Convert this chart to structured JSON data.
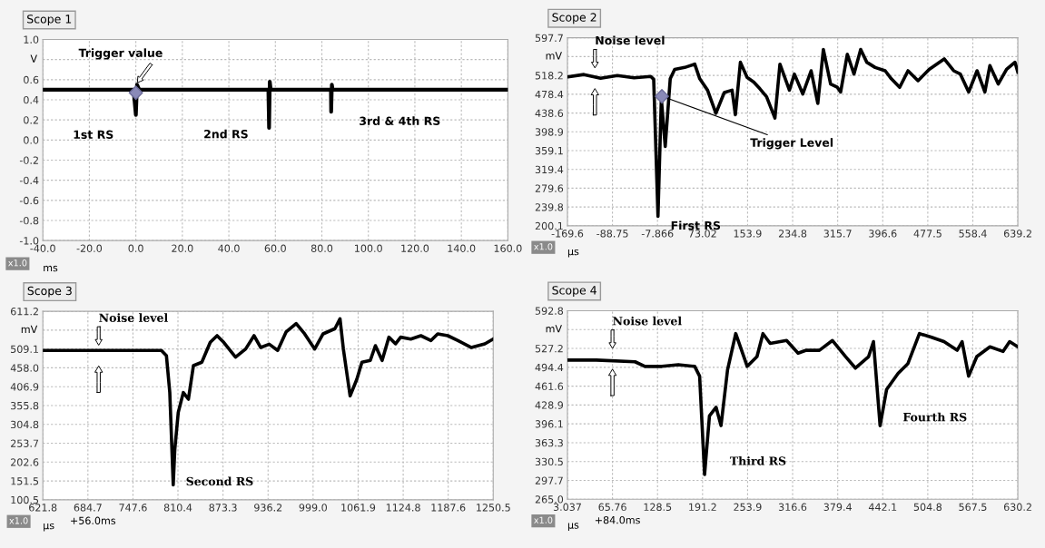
{
  "chart_data": [
    {
      "type": "line",
      "title": "Scope 1",
      "xlabel": "ms",
      "ylabel": "V",
      "grid": true,
      "xlim": [
        -40,
        160
      ],
      "xticks": [
        {
          "value": -40,
          "label": "-40.0"
        },
        {
          "value": -20,
          "label": "-20.0"
        },
        {
          "value": 0,
          "label": "0.0"
        },
        {
          "value": 20,
          "label": "20.0"
        },
        {
          "value": 40,
          "label": "40.0"
        },
        {
          "value": 60,
          "label": "60.0"
        },
        {
          "value": 80,
          "label": "80.0"
        },
        {
          "value": 100,
          "label": "100.0"
        },
        {
          "value": 120,
          "label": "120.0"
        },
        {
          "value": 140,
          "label": "140.0"
        },
        {
          "value": 160,
          "label": "160.0"
        }
      ],
      "ylim": [
        -1.0,
        1.0
      ],
      "yticks": [
        {
          "value": -1.0,
          "label": "-1.0"
        },
        {
          "value": -0.8,
          "label": "-0.8"
        },
        {
          "value": -0.6,
          "label": "-0.6"
        },
        {
          "value": -0.4,
          "label": "-0.4"
        },
        {
          "value": -0.2,
          "label": "-0.2"
        },
        {
          "value": 0.0,
          "label": "0.0"
        },
        {
          "value": 0.2,
          "label": "0.2"
        },
        {
          "value": 0.4,
          "label": "0.4"
        },
        {
          "value": 0.6,
          "label": "0.6"
        },
        {
          "value": 0.8,
          "label": null
        },
        {
          "value": 1.0,
          "label": "1.0"
        }
      ],
      "series": [
        {
          "color": "#000000",
          "x": [
            -40,
            -1,
            0,
            0.5,
            1.5,
            57,
            57.3,
            57.6,
            58,
            83.9,
            84,
            84.3,
            84.6,
            160
          ],
          "values": [
            0.5,
            0.5,
            0.25,
            0.55,
            0.5,
            0.5,
            0.12,
            0.58,
            0.5,
            0.5,
            0.28,
            0.55,
            0.5,
            0.5
          ]
        },
        {
          "type": "scatter",
          "marker": "diamond",
          "color": "#8a8ab8",
          "x": [
            0
          ],
          "values": [
            0.47
          ]
        }
      ],
      "annotations": [
        {
          "text": "Trigger value",
          "x": 0,
          "y": 0.55
        },
        {
          "text": "1st RS",
          "x": 0,
          "y": 0.27
        },
        {
          "text": "2nd RS",
          "x": 57.3,
          "y": 0.15
        },
        {
          "text": "3rd & 4th RS",
          "x": 84,
          "y": 0.28
        },
        "x1.0"
      ]
    },
    {
      "type": "line",
      "title": "Scope 2",
      "xlabel": "µs",
      "ylabel": "mV",
      "grid": true,
      "xlim": [
        -169.6,
        639.2
      ],
      "xticks": [
        -169.6,
        -88.75,
        -7.866,
        73.02,
        153.9,
        234.8,
        315.7,
        396.6,
        477.5,
        558.4,
        639.2
      ],
      "ylim": [
        200.1,
        597.7
      ],
      "yticks": [
        200.1,
        239.8,
        279.6,
        319.4,
        359.1,
        398.9,
        438.6,
        478.4,
        518.2,
        {
          "value": 557.9,
          "label": null
        },
        597.7
      ],
      "series": [
        {
          "color": "#000000",
          "x": [
            -169.6,
            -140,
            -110,
            -80,
            -50,
            -20,
            -14.7,
            -7,
            -1,
            6,
            15,
            23,
            41,
            59,
            68,
            82,
            97,
            112,
            126,
            132,
            141,
            153,
            165,
            176,
            188,
            203,
            212,
            229,
            238,
            253,
            268,
            280,
            290,
            303,
            315,
            321,
            333,
            345,
            357,
            368,
            383,
            401,
            412,
            427,
            442,
            460,
            480,
            507,
            524,
            536,
            551,
            566,
            580,
            589,
            604,
            619,
            634,
            639.2
          ],
          "values": [
            515,
            520,
            512,
            518,
            513,
            516,
            510,
            220,
            469,
            368,
            511,
            531,
            535,
            542,
            511,
            487,
            438,
            482,
            487,
            435,
            546,
            514,
            504,
            490,
            473,
            428,
            542,
            487,
            521,
            479,
            528,
            459,
            573,
            500,
            493,
            483,
            563,
            521,
            573,
            546,
            535,
            528,
            511,
            493,
            528,
            507,
            531,
            553,
            528,
            521,
            483,
            528,
            483,
            539,
            500,
            531,
            546,
            525
          ]
        },
        {
          "type": "scatter",
          "marker": "diamond",
          "color": "#8a8ab8",
          "x": [
            0
          ],
          "values": [
            474
          ]
        }
      ],
      "annotations": [
        "Noise level",
        {
          "text": "Trigger Level",
          "x": 0,
          "y": 474
        },
        {
          "text": "First RS",
          "x": -7,
          "y": 220
        },
        "x1.0"
      ]
    },
    {
      "type": "line",
      "title": "Scope 3",
      "xlabel": "µs",
      "ylabel": "mV",
      "grid": true,
      "xlim": [
        621.8,
        1250.5
      ],
      "xticks": [
        621.8,
        684.7,
        747.6,
        810.4,
        873.3,
        936.2,
        {
          "value": 999.0,
          "label": "999.0"
        },
        1061.9,
        1124.8,
        1187.6,
        1250.5
      ],
      "ylim": [
        100.5,
        611.2
      ],
      "yticks": [
        100.5,
        151.5,
        202.6,
        253.7,
        304.8,
        355.8,
        406.9,
        {
          "value": 458.0,
          "label": "458.0"
        },
        509.1,
        {
          "value": 560.1,
          "label": null
        },
        611.2
      ],
      "series": [
        {
          "color": "#000000",
          "x": [
            621.8,
            655.7,
            702.7,
            749.7,
            787.3,
            794.3,
            799,
            803.8,
            806,
            810.8,
            817.9,
            825,
            832,
            843.7,
            855.5,
            865,
            874.3,
            890.8,
            904.9,
            916.6,
            926,
            937.8,
            949.6,
            961.3,
            975.4,
            987.2,
            1001.3,
            1013,
            1029.5,
            1036.6,
            1041.3,
            1050.7,
            1060.1,
            1067.2,
            1078.9,
            1086,
            1095.4,
            1104.8,
            1114.2,
            1121.3,
            1135.4,
            1149.5,
            1163.6,
            1173,
            1187.1,
            1201.2,
            1220,
            1238.8,
            1250.5
          ],
          "values": [
            505,
            505,
            505,
            505,
            505,
            491,
            391,
            141,
            237,
            337,
            391,
            373,
            464,
            473,
            527,
            545,
            527,
            487,
            509,
            545,
            513,
            522,
            505,
            555,
            578,
            550,
            509,
            550,
            564,
            591,
            509,
            382,
            427,
            473,
            478,
            518,
            478,
            541,
            523,
            541,
            536,
            545,
            532,
            550,
            545,
            532,
            513,
            523,
            536
          ]
        }
      ],
      "annotations": [
        "Noise level",
        {
          "text": "Second RS",
          "x": 803.8,
          "y": 141
        },
        "x1.0",
        "+56.0ms"
      ]
    },
    {
      "type": "line",
      "title": "Scope 4",
      "xlabel": "µs",
      "ylabel": "mV",
      "grid": true,
      "xlim": [
        3.037,
        630.2
      ],
      "xticks": [
        3.037,
        65.76,
        128.5,
        191.2,
        253.9,
        316.6,
        379.4,
        442.1,
        504.8,
        567.5,
        630.2
      ],
      "ylim": [
        265.0,
        592.8
      ],
      "yticks": [
        {
          "value": 265.0,
          "label": "265.0"
        },
        297.7,
        330.5,
        363.3,
        396.1,
        428.9,
        461.6,
        494.4,
        527.2,
        {
          "value": 560.0,
          "label": null
        },
        592.8
      ],
      "series": [
        {
          "color": "#000000",
          "x": [
            3.037,
            43.2,
            97.2,
            111,
            134.6,
            157.4,
            180.3,
            187.1,
            194,
            200.8,
            210,
            216.9,
            226,
            237.4,
            253.4,
            267,
            275.3,
            285.3,
            308.2,
            324.2,
            335.6,
            353.9,
            372.1,
            390.4,
            404.1,
            422.4,
            429.2,
            438.4,
            447.5,
            463.5,
            477.2,
            493.2,
            509.2,
            527.4,
            545.7,
            552.6,
            561.7,
            573.1,
            591.4,
            609.7,
            618.8,
            630.2
          ],
          "values": [
            507,
            507,
            504,
            496,
            496,
            499,
            496,
            479,
            308,
            410,
            425,
            393,
            490,
            553,
            496,
            513,
            553,
            536,
            541,
            519,
            524,
            524,
            541,
            513,
            493,
            513,
            539,
            393,
            456,
            484,
            501,
            553,
            547,
            539,
            524,
            539,
            479,
            513,
            530,
            522,
            539,
            530
          ]
        }
      ],
      "annotations": [
        "Noise level",
        {
          "text": "Third RS",
          "x": 194,
          "y": 308
        },
        {
          "text": "Fourth RS",
          "x": 438.4,
          "y": 393
        },
        "x1.0",
        "+84.0ms"
      ]
    }
  ]
}
